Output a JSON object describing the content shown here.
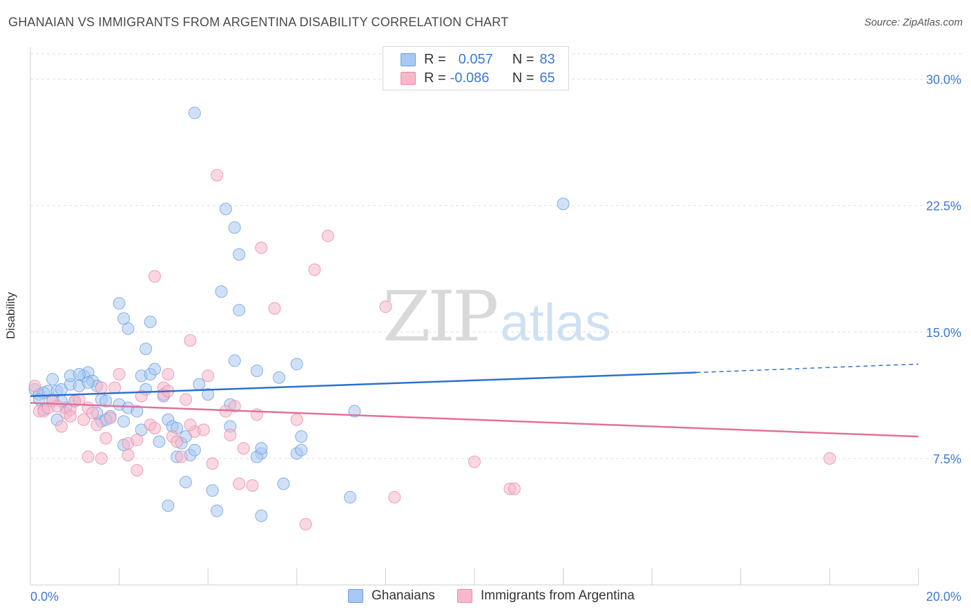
{
  "title": "GHANAIAN VS IMMIGRANTS FROM ARGENTINA DISABILITY CORRELATION CHART",
  "source": "Source: ZipAtlas.com",
  "legend": {
    "rows": [
      {
        "r_label": "R =",
        "r_value": "0.057",
        "n_label": "N =",
        "n_value": "83",
        "color": "#a9c8f1"
      },
      {
        "r_label": "R =",
        "r_value": "-0.086",
        "n_label": "N =",
        "n_value": "65",
        "color": "#f6b8cb"
      }
    ]
  },
  "bottom_legend": {
    "series1": "Ghanaians",
    "series2": "Immigrants from Argentina"
  },
  "watermark": {
    "zip": "ZIP",
    "atlas": "atlas"
  },
  "colors": {
    "blue_fill": "#a9c8f1",
    "blue_stroke": "#6a9fe0",
    "blue_line": "#2f6fcd",
    "pink_fill": "#f6b8cb",
    "pink_stroke": "#ea8aa8",
    "pink_line": "#e2709a",
    "tick_label": "#3b78d8",
    "grid": "#dedede"
  },
  "chart_data": {
    "type": "scatter",
    "title": "GHANAIAN VS IMMIGRANTS FROM ARGENTINA DISABILITY CORRELATION CHART",
    "xlabel": "",
    "ylabel": "Disability",
    "xlim": [
      0,
      20
    ],
    "ylim": [
      0,
      31.5
    ],
    "x_tick_labels": [
      {
        "value": 0,
        "label": "0.0%"
      },
      {
        "value": 20,
        "label": "20.0%"
      }
    ],
    "y_tick_labels": [
      {
        "value": 7.5,
        "label": "7.5%"
      },
      {
        "value": 15,
        "label": "15.0%"
      },
      {
        "value": 22.5,
        "label": "22.5%"
      },
      {
        "value": 30,
        "label": "30.0%"
      }
    ],
    "grid": true,
    "legend_position": "top-center",
    "series": [
      {
        "name": "Ghanaians",
        "color": "#a9c8f1",
        "trend": {
          "x": [
            0,
            15
          ],
          "y": [
            11.2,
            12.6
          ],
          "dashed_to": [
            20,
            13.1
          ]
        },
        "points": [
          [
            0.1,
            11.6
          ],
          [
            0.2,
            11.3
          ],
          [
            0.3,
            11.4
          ],
          [
            0.4,
            11.5
          ],
          [
            0.5,
            11.0
          ],
          [
            0.6,
            11.5
          ],
          [
            0.7,
            11.6
          ],
          [
            0.8,
            10.5
          ],
          [
            0.9,
            11.9
          ],
          [
            1.0,
            10.9
          ],
          [
            1.1,
            11.8
          ],
          [
            1.2,
            12.4
          ],
          [
            1.3,
            12.6
          ],
          [
            1.4,
            12.1
          ],
          [
            1.5,
            11.8
          ],
          [
            1.6,
            11.0
          ],
          [
            1.7,
            10.9
          ],
          [
            1.8,
            10.0
          ],
          [
            2.0,
            10.7
          ],
          [
            2.1,
            9.7
          ],
          [
            2.2,
            10.5
          ],
          [
            2.4,
            10.3
          ],
          [
            2.5,
            12.4
          ],
          [
            2.6,
            11.6
          ],
          [
            2.7,
            12.5
          ],
          [
            2.8,
            12.8
          ],
          [
            0.5,
            12.2
          ],
          [
            0.9,
            12.4
          ],
          [
            1.1,
            12.5
          ],
          [
            0.6,
            9.8
          ],
          [
            1.6,
            9.7
          ],
          [
            2.5,
            9.2
          ],
          [
            2.9,
            8.5
          ],
          [
            3.1,
            9.8
          ],
          [
            3.2,
            9.4
          ],
          [
            3.4,
            8.4
          ],
          [
            3.6,
            7.7
          ],
          [
            3.3,
            7.6
          ],
          [
            3.5,
            6.1
          ],
          [
            3.1,
            4.7
          ],
          [
            4.1,
            5.6
          ],
          [
            4.2,
            4.4
          ],
          [
            4.5,
            9.4
          ],
          [
            4.6,
            13.3
          ],
          [
            5.1,
            12.7
          ],
          [
            5.6,
            12.3
          ],
          [
            4.5,
            10.7
          ],
          [
            5.2,
            7.8
          ],
          [
            5.1,
            7.6
          ],
          [
            5.2,
            4.1
          ],
          [
            5.7,
            6.0
          ],
          [
            6.0,
            7.8
          ],
          [
            6.1,
            8.0
          ],
          [
            6.1,
            8.8
          ],
          [
            6.0,
            13.1
          ],
          [
            7.2,
            5.2
          ],
          [
            7.3,
            10.3
          ],
          [
            3.8,
            11.9
          ],
          [
            3.0,
            11.2
          ],
          [
            2.6,
            14.0
          ],
          [
            2.7,
            15.6
          ],
          [
            2.2,
            15.2
          ],
          [
            2.1,
            15.8
          ],
          [
            2.0,
            16.7
          ],
          [
            4.3,
            17.4
          ],
          [
            4.7,
            16.3
          ],
          [
            4.7,
            19.6
          ],
          [
            4.6,
            21.2
          ],
          [
            4.4,
            22.3
          ],
          [
            3.7,
            28.0
          ],
          [
            12.0,
            22.6
          ],
          [
            1.7,
            9.8
          ],
          [
            2.1,
            8.3
          ],
          [
            3.3,
            9.3
          ],
          [
            3.5,
            8.8
          ],
          [
            0.2,
            11.0
          ],
          [
            0.3,
            10.4
          ],
          [
            1.3,
            12.0
          ],
          [
            0.7,
            10.9
          ],
          [
            1.5,
            10.2
          ],
          [
            3.7,
            8.0
          ],
          [
            4.0,
            11.3
          ],
          [
            5.2,
            8.1
          ]
        ]
      },
      {
        "name": "Immigrants from Argentina",
        "color": "#f6b8cb",
        "trend": {
          "x": [
            0,
            20
          ],
          "y": [
            10.8,
            8.8
          ]
        },
        "points": [
          [
            0.1,
            11.8
          ],
          [
            0.2,
            10.3
          ],
          [
            0.3,
            10.3
          ],
          [
            0.4,
            10.5
          ],
          [
            0.5,
            10.9
          ],
          [
            0.6,
            10.6
          ],
          [
            0.7,
            9.4
          ],
          [
            0.8,
            10.2
          ],
          [
            0.9,
            10.4
          ],
          [
            1.0,
            10.9
          ],
          [
            1.1,
            11.0
          ],
          [
            1.2,
            9.8
          ],
          [
            1.3,
            10.5
          ],
          [
            1.4,
            10.2
          ],
          [
            1.5,
            9.5
          ],
          [
            1.6,
            11.7
          ],
          [
            1.7,
            8.7
          ],
          [
            1.8,
            9.9
          ],
          [
            1.9,
            11.7
          ],
          [
            2.0,
            12.5
          ],
          [
            2.2,
            8.4
          ],
          [
            2.4,
            8.6
          ],
          [
            2.5,
            11.2
          ],
          [
            2.7,
            9.5
          ],
          [
            2.8,
            9.3
          ],
          [
            3.0,
            11.7
          ],
          [
            3.1,
            12.5
          ],
          [
            3.2,
            8.8
          ],
          [
            3.3,
            8.5
          ],
          [
            3.4,
            7.6
          ],
          [
            3.5,
            11.0
          ],
          [
            3.7,
            9.1
          ],
          [
            3.9,
            9.2
          ],
          [
            4.0,
            12.4
          ],
          [
            4.1,
            7.2
          ],
          [
            4.4,
            10.3
          ],
          [
            4.6,
            10.6
          ],
          [
            4.7,
            6.0
          ],
          [
            4.8,
            8.1
          ],
          [
            5.0,
            5.9
          ],
          [
            5.1,
            10.1
          ],
          [
            6.0,
            9.8
          ],
          [
            6.2,
            3.6
          ],
          [
            5.2,
            20.0
          ],
          [
            6.4,
            18.7
          ],
          [
            6.7,
            20.7
          ],
          [
            4.2,
            24.3
          ],
          [
            2.8,
            18.3
          ],
          [
            3.6,
            14.5
          ],
          [
            5.5,
            16.4
          ],
          [
            8.0,
            16.5
          ],
          [
            8.2,
            5.2
          ],
          [
            10.0,
            7.3
          ],
          [
            10.8,
            5.7
          ],
          [
            10.9,
            5.7
          ],
          [
            18.0,
            7.5
          ],
          [
            1.3,
            7.6
          ],
          [
            1.6,
            7.5
          ],
          [
            2.2,
            7.7
          ],
          [
            2.4,
            6.8
          ],
          [
            3.0,
            11.3
          ],
          [
            3.1,
            11.5
          ],
          [
            0.9,
            10.0
          ],
          [
            4.5,
            8.9
          ],
          [
            3.6,
            9.5
          ]
        ]
      }
    ]
  }
}
